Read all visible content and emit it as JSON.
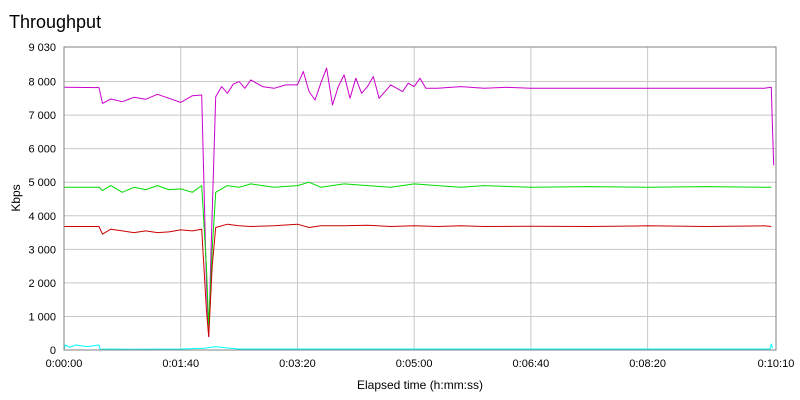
{
  "chart_data": {
    "type": "line",
    "title": "Throughput",
    "xlabel": "Elapsed time (h:mm:ss)",
    "ylabel": "Kbps",
    "x_unit": "seconds",
    "xlim": [
      0,
      610
    ],
    "ylim": [
      0,
      9030
    ],
    "x_ticks": [
      {
        "value": 0,
        "label": "0:00:00"
      },
      {
        "value": 100,
        "label": "0:01:40"
      },
      {
        "value": 200,
        "label": "0:03:20"
      },
      {
        "value": 300,
        "label": "0:05:00"
      },
      {
        "value": 400,
        "label": "0:06:40"
      },
      {
        "value": 500,
        "label": "0:08:20"
      },
      {
        "value": 610,
        "label": "0:10:10"
      }
    ],
    "y_ticks": [
      {
        "value": 0,
        "label": "0"
      },
      {
        "value": 1000,
        "label": "1 000"
      },
      {
        "value": 2000,
        "label": "2 000"
      },
      {
        "value": 3000,
        "label": "3 000"
      },
      {
        "value": 4000,
        "label": "4 000"
      },
      {
        "value": 5000,
        "label": "5 000"
      },
      {
        "value": 6000,
        "label": "6 000"
      },
      {
        "value": 7000,
        "label": "7 000"
      },
      {
        "value": 8000,
        "label": "8 000"
      },
      {
        "value": 9030,
        "label": "9 030"
      }
    ],
    "grid": true,
    "legend": "none",
    "series": [
      {
        "color": "#cc00cc",
        "x": [
          0,
          30,
          33,
          40,
          50,
          60,
          70,
          80,
          90,
          100,
          110,
          118,
          122,
          124,
          126,
          130,
          135,
          140,
          145,
          150,
          155,
          160,
          170,
          180,
          190,
          200,
          205,
          210,
          215,
          220,
          225,
          230,
          235,
          240,
          245,
          250,
          255,
          260,
          265,
          270,
          280,
          290,
          295,
          300,
          305,
          310,
          320,
          340,
          360,
          380,
          400,
          450,
          500,
          550,
          580,
          600,
          606,
          607,
          608
        ],
        "y": [
          7830,
          7820,
          7350,
          7480,
          7400,
          7530,
          7470,
          7620,
          7500,
          7380,
          7580,
          7600,
          2000,
          400,
          3000,
          7550,
          7850,
          7650,
          7920,
          8000,
          7800,
          8050,
          7850,
          7800,
          7900,
          7900,
          8300,
          7700,
          7450,
          7950,
          8400,
          7300,
          7850,
          8200,
          7500,
          8100,
          7650,
          7850,
          8150,
          7500,
          7900,
          7700,
          7950,
          7850,
          8100,
          7800,
          7800,
          7850,
          7800,
          7830,
          7800,
          7800,
          7800,
          7800,
          7800,
          7800,
          7830,
          6600,
          5500
        ]
      },
      {
        "color": "#00dd00",
        "x": [
          0,
          30,
          33,
          40,
          50,
          60,
          70,
          80,
          90,
          100,
          110,
          118,
          122,
          124,
          127,
          130,
          140,
          150,
          160,
          180,
          200,
          210,
          220,
          240,
          260,
          280,
          300,
          320,
          340,
          360,
          400,
          450,
          500,
          550,
          600,
          606
        ],
        "y": [
          4850,
          4850,
          4750,
          4900,
          4700,
          4850,
          4780,
          4900,
          4780,
          4800,
          4700,
          4900,
          2500,
          700,
          3000,
          4700,
          4900,
          4850,
          4950,
          4850,
          4900,
          5000,
          4850,
          4950,
          4900,
          4850,
          4950,
          4900,
          4850,
          4900,
          4850,
          4870,
          4850,
          4870,
          4850,
          4850
        ]
      },
      {
        "color": "#cc0000",
        "x": [
          0,
          30,
          33,
          40,
          50,
          60,
          70,
          80,
          90,
          100,
          110,
          118,
          122,
          124,
          127,
          130,
          140,
          150,
          160,
          180,
          200,
          210,
          220,
          240,
          260,
          280,
          300,
          320,
          340,
          360,
          400,
          450,
          500,
          550,
          600,
          606
        ],
        "y": [
          3680,
          3680,
          3450,
          3600,
          3550,
          3500,
          3550,
          3500,
          3520,
          3580,
          3550,
          3600,
          1200,
          400,
          2500,
          3650,
          3750,
          3700,
          3680,
          3700,
          3750,
          3650,
          3700,
          3700,
          3720,
          3680,
          3700,
          3680,
          3700,
          3680,
          3690,
          3680,
          3700,
          3680,
          3700,
          3680
        ]
      },
      {
        "color": "#00ffff",
        "x": [
          0,
          1,
          5,
          10,
          20,
          30,
          31,
          40,
          60,
          100,
          120,
          130,
          140,
          150,
          200,
          300,
          400,
          500,
          600,
          605,
          606,
          607
        ],
        "y": [
          0,
          150,
          80,
          150,
          100,
          150,
          20,
          30,
          20,
          30,
          50,
          100,
          60,
          30,
          30,
          30,
          30,
          30,
          30,
          30,
          180,
          50
        ]
      }
    ]
  }
}
